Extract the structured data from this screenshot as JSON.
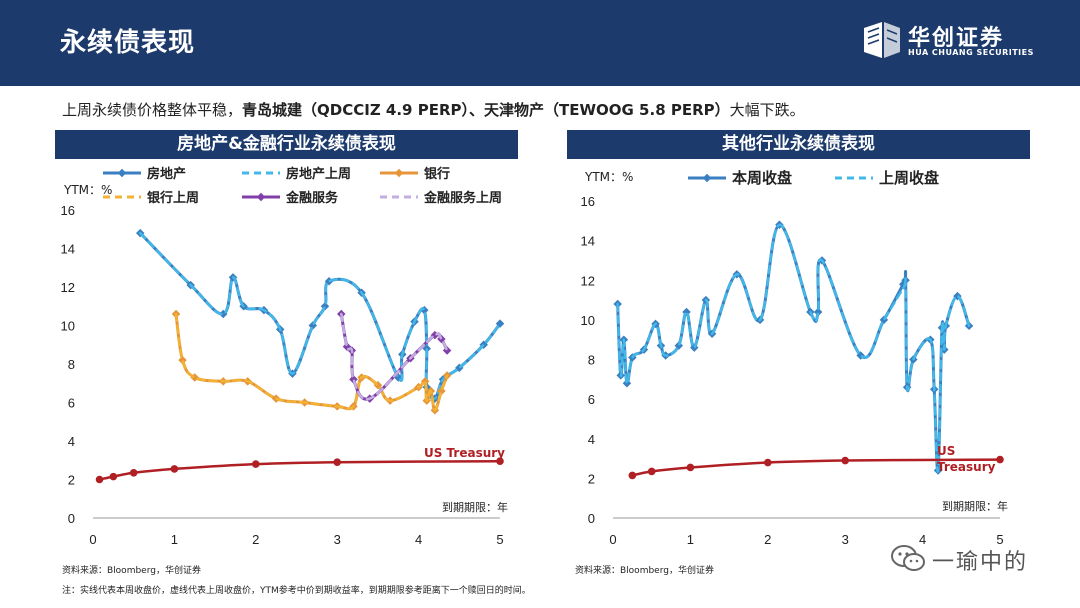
{
  "header": {
    "title": "永续债表现"
  },
  "logo": {
    "cn": "华创证券",
    "en": "HUA CHUANG SECURITIES"
  },
  "summary": {
    "prefix": "上周永续债价格整体平稳，",
    "bold": "青岛城建（QDCCIZ 4.9 PERP）、天津物产（TEWOOG 5.8 PERP）",
    "suffix": "大幅下跌。"
  },
  "panels": {
    "left_title": "房地产&金融行业永续债表现",
    "right_title": "其他行业永续债表现"
  },
  "source": "资料来源：Bloomberg，华创证券",
  "note": "注：实线代表本周收盘价，虚线代表上周收盘价，YTM参考中价到期收益率，到期期限参考距离下一个赎回日的时间。",
  "watermark": "一瑜中的",
  "colors": {
    "navy": "#1c3a6b",
    "blue": "#3a7fc1",
    "lightblue": "#41b8e8",
    "orange": "#e69538",
    "gold": "#f2b233",
    "purple": "#8040a8",
    "lavender": "#c2aee0",
    "red": "#b01f24"
  },
  "chart_data": [
    {
      "type": "line",
      "title": "房地产&金融行业永续债表现",
      "ylabel": "YTM：%",
      "xlabel": "到期期限：年",
      "xlim": [
        0,
        5
      ],
      "ylim": [
        0,
        16
      ],
      "xticks": [
        0,
        1,
        2,
        3,
        4,
        5
      ],
      "yticks": [
        0,
        2,
        4,
        6,
        8,
        10,
        12,
        14,
        16
      ],
      "legend": [
        "房地产",
        "房地产上周",
        "银行",
        "银行上周",
        "金融服务",
        "金融服务上周"
      ],
      "annotation": "US Treasury",
      "series": [
        {
          "name": "房地产",
          "color": "#3a7fc1",
          "dashed": false,
          "marker": true,
          "points": [
            [
              0.58,
              14.8
            ],
            [
              1.2,
              12.1
            ],
            [
              1.6,
              10.6
            ],
            [
              1.72,
              12.5
            ],
            [
              1.85,
              11.0
            ],
            [
              2.1,
              10.8
            ],
            [
              2.3,
              9.8
            ],
            [
              2.45,
              7.5
            ],
            [
              2.7,
              10.0
            ],
            [
              2.85,
              11.0
            ],
            [
              2.9,
              12.3
            ],
            [
              3.3,
              11.7
            ],
            [
              3.75,
              7.3
            ],
            [
              3.8,
              8.5
            ],
            [
              3.95,
              10.2
            ],
            [
              4.07,
              10.8
            ],
            [
              4.1,
              8.8
            ],
            [
              4.1,
              6.8
            ],
            [
              4.2,
              6.2
            ],
            [
              4.3,
              7.2
            ],
            [
              4.5,
              7.8
            ],
            [
              4.8,
              9.0
            ],
            [
              5.0,
              10.1
            ]
          ]
        },
        {
          "name": "房地产上周",
          "color": "#41b8e8",
          "dashed": true,
          "marker": false,
          "points": [
            [
              0.58,
              14.8
            ],
            [
              1.2,
              12.1
            ],
            [
              1.6,
              10.6
            ],
            [
              1.72,
              12.5
            ],
            [
              1.85,
              11.0
            ],
            [
              2.1,
              10.8
            ],
            [
              2.3,
              9.8
            ],
            [
              2.45,
              7.5
            ],
            [
              2.7,
              10.0
            ],
            [
              2.85,
              11.0
            ],
            [
              2.9,
              12.3
            ],
            [
              3.3,
              11.7
            ],
            [
              3.75,
              7.3
            ],
            [
              3.8,
              8.5
            ],
            [
              3.95,
              10.2
            ],
            [
              4.07,
              10.8
            ],
            [
              4.1,
              8.8
            ],
            [
              4.1,
              6.8
            ],
            [
              4.2,
              6.2
            ],
            [
              4.3,
              7.2
            ],
            [
              4.5,
              7.8
            ],
            [
              4.8,
              9.0
            ],
            [
              5.0,
              10.1
            ]
          ]
        },
        {
          "name": "银行",
          "color": "#e69538",
          "dashed": false,
          "marker": true,
          "points": [
            [
              1.02,
              10.6
            ],
            [
              1.1,
              8.2
            ],
            [
              1.25,
              7.3
            ],
            [
              1.6,
              7.1
            ],
            [
              1.9,
              7.1
            ],
            [
              2.25,
              6.2
            ],
            [
              2.6,
              6.0
            ],
            [
              3.0,
              5.8
            ],
            [
              3.2,
              5.8
            ],
            [
              3.3,
              7.3
            ],
            [
              3.5,
              6.9
            ],
            [
              3.65,
              6.1
            ],
            [
              4.0,
              6.8
            ],
            [
              4.08,
              7.1
            ],
            [
              4.1,
              6.1
            ],
            [
              4.15,
              6.6
            ],
            [
              4.2,
              5.6
            ],
            [
              4.28,
              6.6
            ],
            [
              4.35,
              7.4
            ]
          ]
        },
        {
          "name": "银行上周",
          "color": "#f2b233",
          "dashed": true,
          "marker": false,
          "points": [
            [
              1.02,
              10.6
            ],
            [
              1.1,
              8.2
            ],
            [
              1.25,
              7.3
            ],
            [
              1.6,
              7.1
            ],
            [
              1.9,
              7.1
            ],
            [
              2.25,
              6.2
            ],
            [
              2.6,
              6.0
            ],
            [
              3.0,
              5.8
            ],
            [
              3.2,
              5.8
            ],
            [
              3.3,
              7.3
            ],
            [
              3.5,
              6.9
            ],
            [
              3.65,
              6.1
            ],
            [
              4.0,
              6.8
            ],
            [
              4.08,
              7.1
            ],
            [
              4.1,
              6.1
            ],
            [
              4.15,
              6.6
            ],
            [
              4.2,
              5.6
            ],
            [
              4.28,
              6.6
            ],
            [
              4.35,
              7.4
            ]
          ]
        },
        {
          "name": "金融服务",
          "color": "#8040a8",
          "dashed": false,
          "marker": true,
          "points": [
            [
              3.05,
              10.6
            ],
            [
              3.12,
              8.9
            ],
            [
              3.18,
              8.7
            ],
            [
              3.2,
              7.2
            ],
            [
              3.4,
              6.2
            ],
            [
              3.9,
              8.3
            ],
            [
              4.2,
              9.5
            ],
            [
              4.28,
              9.3
            ],
            [
              4.35,
              8.7
            ]
          ]
        },
        {
          "name": "金融服务上周",
          "color": "#c2aee0",
          "dashed": true,
          "marker": false,
          "points": [
            [
              3.05,
              10.6
            ],
            [
              3.12,
              8.9
            ],
            [
              3.18,
              8.7
            ],
            [
              3.2,
              7.2
            ],
            [
              3.4,
              6.2
            ],
            [
              3.9,
              8.3
            ],
            [
              4.2,
              9.5
            ],
            [
              4.28,
              9.3
            ],
            [
              4.35,
              8.7
            ]
          ]
        },
        {
          "name": "US Treasury",
          "color": "#b01f24",
          "dashed": false,
          "marker": true,
          "points": [
            [
              0.08,
              2.0
            ],
            [
              0.25,
              2.15
            ],
            [
              0.5,
              2.35
            ],
            [
              1.0,
              2.55
            ],
            [
              2.0,
              2.8
            ],
            [
              3.0,
              2.9
            ],
            [
              5.0,
              2.95
            ]
          ]
        }
      ]
    },
    {
      "type": "line",
      "title": "其他行业永续债表现",
      "ylabel": "YTM：%",
      "xlabel": "到期期限：年",
      "xlim": [
        0,
        5
      ],
      "ylim": [
        0,
        16
      ],
      "xticks": [
        0,
        1,
        2,
        3,
        4,
        5
      ],
      "yticks": [
        0,
        2,
        4,
        6,
        8,
        10,
        12,
        14,
        16
      ],
      "legend": [
        "本周收盘",
        "上周收盘"
      ],
      "annotation": "US\nTreasury",
      "series": [
        {
          "name": "本周收盘",
          "color": "#3a7fc1",
          "dashed": false,
          "marker": true,
          "points": [
            [
              0.06,
              10.8
            ],
            [
              0.1,
              7.2
            ],
            [
              0.14,
              9.0
            ],
            [
              0.18,
              6.8
            ],
            [
              0.25,
              8.1
            ],
            [
              0.4,
              8.5
            ],
            [
              0.55,
              9.8
            ],
            [
              0.62,
              8.7
            ],
            [
              0.68,
              8.2
            ],
            [
              0.85,
              8.7
            ],
            [
              0.95,
              10.4
            ],
            [
              1.05,
              8.6
            ],
            [
              1.2,
              11.0
            ],
            [
              1.28,
              9.3
            ],
            [
              1.6,
              12.3
            ],
            [
              1.9,
              10.0
            ],
            [
              2.15,
              14.8
            ],
            [
              2.55,
              10.4
            ],
            [
              2.65,
              10.4
            ],
            [
              2.7,
              13.0
            ],
            [
              3.2,
              8.2
            ],
            [
              3.5,
              10.0
            ],
            [
              3.75,
              11.8
            ],
            [
              3.78,
              12.0
            ],
            [
              3.8,
              6.6
            ],
            [
              3.88,
              8.0
            ],
            [
              4.1,
              9.0
            ],
            [
              4.15,
              6.5
            ],
            [
              4.2,
              2.4
            ],
            [
              4.25,
              9.6
            ],
            [
              4.28,
              8.5
            ],
            [
              4.3,
              9.7
            ],
            [
              4.45,
              11.2
            ],
            [
              4.6,
              9.7
            ]
          ]
        },
        {
          "name": "上周收盘",
          "color": "#41b8e8",
          "dashed": true,
          "marker": false,
          "points": [
            [
              0.06,
              10.8
            ],
            [
              0.1,
              7.2
            ],
            [
              0.14,
              9.0
            ],
            [
              0.18,
              6.8
            ],
            [
              0.25,
              8.1
            ],
            [
              0.4,
              8.5
            ],
            [
              0.55,
              9.8
            ],
            [
              0.62,
              8.7
            ],
            [
              0.68,
              8.2
            ],
            [
              0.85,
              8.7
            ],
            [
              0.95,
              10.4
            ],
            [
              1.05,
              8.6
            ],
            [
              1.2,
              11.0
            ],
            [
              1.28,
              9.3
            ],
            [
              1.6,
              12.3
            ],
            [
              1.9,
              10.0
            ],
            [
              2.15,
              14.8
            ],
            [
              2.55,
              10.4
            ],
            [
              2.65,
              10.4
            ],
            [
              2.7,
              13.0
            ],
            [
              3.2,
              8.2
            ],
            [
              3.5,
              10.0
            ],
            [
              3.75,
              11.6
            ],
            [
              3.78,
              11.7
            ],
            [
              3.8,
              6.6
            ],
            [
              3.88,
              8.0
            ],
            [
              4.1,
              9.0
            ],
            [
              4.15,
              6.5
            ],
            [
              4.2,
              2.4
            ],
            [
              4.25,
              9.6
            ],
            [
              4.28,
              8.5
            ],
            [
              4.3,
              9.7
            ],
            [
              4.45,
              11.2
            ],
            [
              4.6,
              9.7
            ]
          ]
        },
        {
          "name": "US Treasury",
          "color": "#b01f24",
          "dashed": false,
          "marker": true,
          "points": [
            [
              0.25,
              2.15
            ],
            [
              0.5,
              2.35
            ],
            [
              1.0,
              2.55
            ],
            [
              2.0,
              2.8
            ],
            [
              3.0,
              2.9
            ],
            [
              5.0,
              2.95
            ]
          ]
        }
      ]
    }
  ]
}
